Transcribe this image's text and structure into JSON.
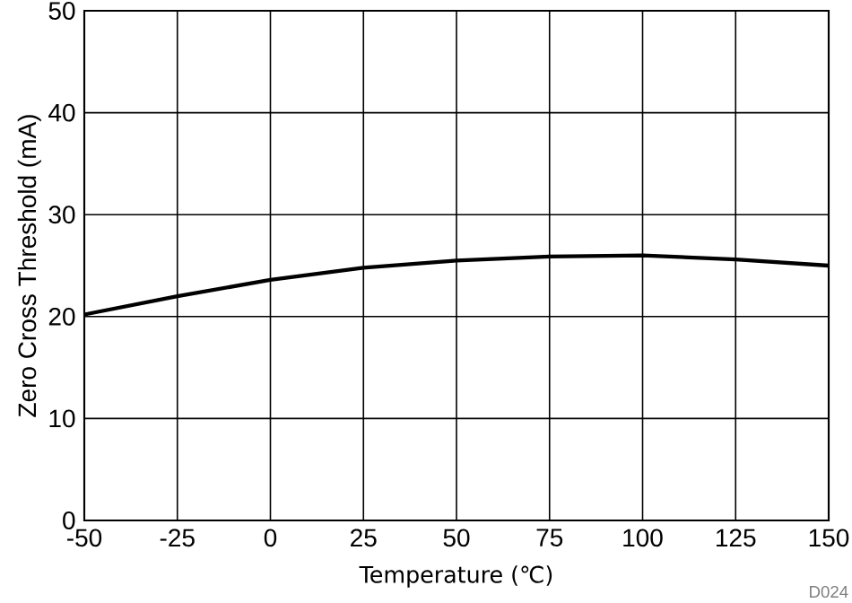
{
  "chart_data": {
    "type": "line",
    "xlabel": "Temperature (℃)",
    "ylabel": "Zero Cross Threshold (mA)",
    "x": [
      -50,
      -25,
      0,
      25,
      50,
      75,
      100,
      125,
      150
    ],
    "series": [
      {
        "color": "#000000",
        "values": [
          20.2,
          22.0,
          23.6,
          24.8,
          25.5,
          25.9,
          26.0,
          25.6,
          25.0
        ]
      }
    ],
    "xlim": [
      -50,
      150
    ],
    "xticks": [
      -50,
      -25,
      0,
      25,
      50,
      75,
      100,
      125,
      150
    ],
    "ylim": [
      0,
      50
    ],
    "yticks": [
      0,
      10,
      20,
      30,
      40,
      50
    ],
    "grid": true,
    "marker": "none",
    "line_style": "solid",
    "annotations": [
      "D024"
    ]
  }
}
